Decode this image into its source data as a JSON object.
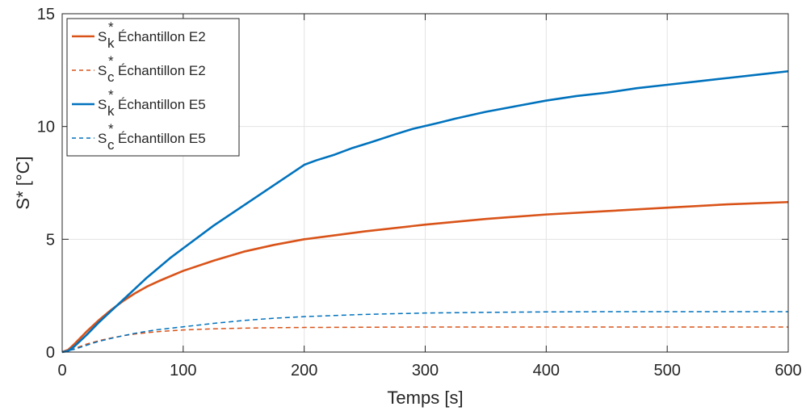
{
  "chart_data": {
    "type": "line",
    "title": "",
    "xlabel": "Temps [s]",
    "ylabel": "S* [°C]",
    "xlim": [
      0,
      600
    ],
    "ylim": [
      0,
      15
    ],
    "xticks": [
      0,
      100,
      200,
      300,
      400,
      500,
      600
    ],
    "yticks": [
      0,
      5,
      10,
      15
    ],
    "grid": true,
    "legend_position": "top-left",
    "series": [
      {
        "name": "S_k^* Échantillon E2",
        "legend_main": "S",
        "legend_sup": "*",
        "legend_sub": "k",
        "legend_text": "Échantillon E2",
        "color": "#d95319",
        "style": "solid",
        "x": [
          0,
          5,
          10,
          20,
          30,
          40,
          50,
          60,
          70,
          80,
          100,
          125,
          150,
          175,
          200,
          250,
          300,
          350,
          400,
          450,
          500,
          550,
          600
        ],
        "y": [
          0,
          0.1,
          0.35,
          0.9,
          1.4,
          1.85,
          2.25,
          2.6,
          2.9,
          3.15,
          3.6,
          4.05,
          4.45,
          4.75,
          5.0,
          5.35,
          5.65,
          5.9,
          6.1,
          6.25,
          6.4,
          6.55,
          6.65
        ]
      },
      {
        "name": "S_c^* Échantillon E2",
        "legend_main": "S",
        "legend_sup": "*",
        "legend_sub": "c",
        "legend_text": "Échantillon E2",
        "color": "#d95319",
        "style": "dashed",
        "x": [
          0,
          10,
          20,
          30,
          40,
          50,
          60,
          70,
          80,
          100,
          125,
          150,
          175,
          200,
          250,
          300,
          400,
          500,
          600
        ],
        "y": [
          0,
          0.15,
          0.35,
          0.5,
          0.62,
          0.72,
          0.8,
          0.86,
          0.91,
          0.98,
          1.03,
          1.06,
          1.08,
          1.09,
          1.1,
          1.11,
          1.11,
          1.11,
          1.11
        ]
      },
      {
        "name": "S_k^* Échantillon E5",
        "legend_main": "S",
        "legend_sup": "*",
        "legend_sub": "k",
        "legend_text": "Échantillon E5",
        "color": "#0072bd",
        "style": "solid",
        "x": [
          0,
          5,
          10,
          20,
          30,
          40,
          50,
          60,
          70,
          80,
          90,
          100,
          125,
          150,
          175,
          200,
          210,
          225,
          240,
          255,
          275,
          290,
          310,
          325,
          350,
          375,
          400,
          425,
          450,
          475,
          500,
          525,
          550,
          575,
          600
        ],
        "y": [
          0,
          0.05,
          0.25,
          0.75,
          1.3,
          1.8,
          2.3,
          2.8,
          3.3,
          3.75,
          4.2,
          4.6,
          5.6,
          6.5,
          7.4,
          8.3,
          8.5,
          8.75,
          9.05,
          9.3,
          9.65,
          9.9,
          10.15,
          10.35,
          10.65,
          10.9,
          11.15,
          11.35,
          11.5,
          11.7,
          11.85,
          12.0,
          12.15,
          12.3,
          12.45
        ]
      },
      {
        "name": "S_c^* Échantillon E5",
        "legend_main": "S",
        "legend_sup": "*",
        "legend_sub": "c",
        "legend_text": "Échantillon E5",
        "color": "#0072bd",
        "style": "dashed",
        "x": [
          0,
          10,
          20,
          30,
          40,
          50,
          60,
          70,
          80,
          100,
          125,
          150,
          175,
          200,
          250,
          300,
          350,
          400,
          450,
          500,
          550,
          600
        ],
        "y": [
          0,
          0.12,
          0.3,
          0.47,
          0.6,
          0.72,
          0.83,
          0.92,
          1.0,
          1.12,
          1.27,
          1.4,
          1.5,
          1.57,
          1.67,
          1.73,
          1.76,
          1.78,
          1.79,
          1.79,
          1.79,
          1.79
        ]
      }
    ]
  }
}
